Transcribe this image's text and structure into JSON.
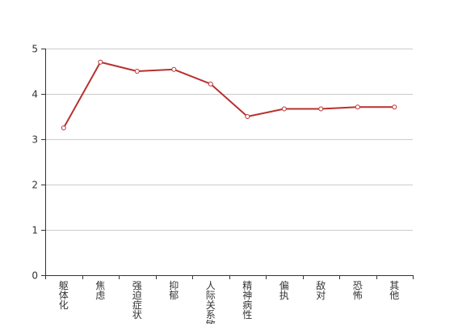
{
  "chart_data": {
    "type": "line",
    "title": "",
    "xlabel": "",
    "ylabel": "",
    "categories": [
      "躯体化",
      "焦虑",
      "强迫症状",
      "抑郁",
      "人际关系敏感",
      "精神病性",
      "偏执",
      "敌对",
      "恐怖",
      "其他"
    ],
    "series": [
      {
        "values": [
          3.25,
          4.7,
          4.5,
          4.54,
          4.22,
          3.5,
          3.67,
          3.67,
          3.71,
          3.71
        ]
      }
    ],
    "ylim": [
      0,
      5
    ],
    "yticks": [
      "0",
      "1",
      "2",
      "3",
      "4",
      "5"
    ],
    "grid": true,
    "legend": "none",
    "colors": {
      "series": "#b8312f",
      "grid": "#cccccc",
      "axis": "#333333"
    }
  }
}
